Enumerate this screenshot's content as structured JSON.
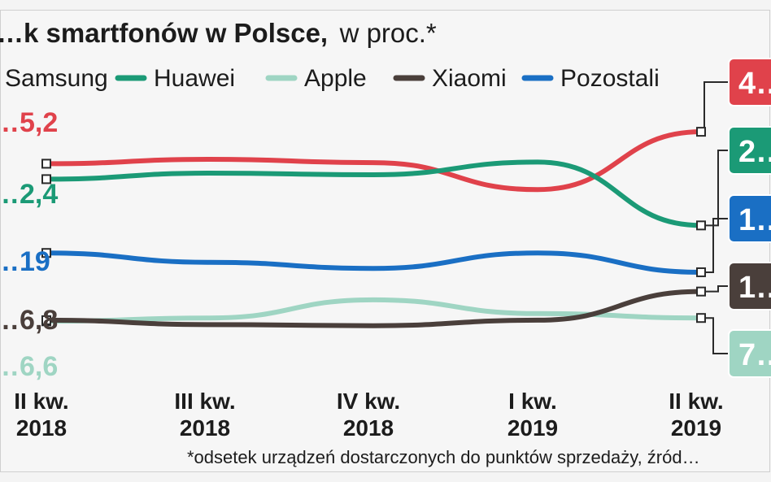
{
  "chart_data": {
    "type": "line",
    "title": "…k smartfonów w Polsce,",
    "subtitle": "w proc.*",
    "categories": [
      "II kw.\n2018",
      "III kw.\n2018",
      "IV kw.\n2018",
      "I kw.\n2019",
      "II kw.\n2019"
    ],
    "ylim": [
      0,
      45
    ],
    "grid": false,
    "legend": "top",
    "series": [
      {
        "name": "Samsung",
        "color": "#e0424b",
        "values": [
          35.2,
          36.0,
          35.4,
          30.5,
          41.0
        ],
        "start_label": "…5,2",
        "end_label": "4…"
      },
      {
        "name": "Huawei",
        "color": "#1b9a76",
        "values": [
          32.4,
          33.5,
          33.2,
          35.5,
          24.0
        ],
        "start_label": "…2,4",
        "end_label": "2…"
      },
      {
        "name": "Apple",
        "color": "#9fd5c3",
        "values": [
          6.6,
          7.2,
          10.5,
          8.0,
          7.2
        ],
        "start_label": "…6,6",
        "end_label": "7…"
      },
      {
        "name": "Xiaomi",
        "color": "#4a3f3b",
        "values": [
          6.8,
          6.0,
          5.8,
          6.8,
          12.0
        ],
        "start_label": "…6,8",
        "end_label": "1…"
      },
      {
        "name": "Pozostali",
        "color": "#1a6fc4",
        "values": [
          19.0,
          17.3,
          16.2,
          19.0,
          15.5
        ],
        "start_label": "…19",
        "end_label": "1…"
      }
    ],
    "footnote": "*odsetek urządzeń dostarczonych do punktów sprzedaży, źród…"
  }
}
